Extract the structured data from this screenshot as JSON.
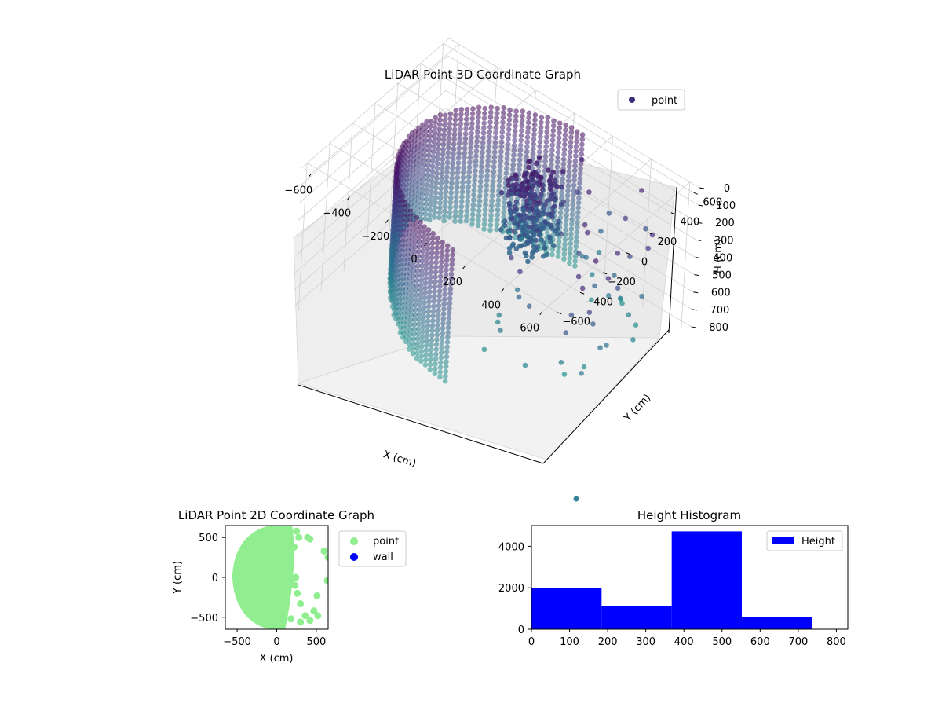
{
  "chart_data": [
    {
      "type": "scatter3d",
      "title": "LiDAR Point 3D Coordinate Graph",
      "xlabel": "X (cm)",
      "ylabel": "Y (cm)",
      "zlabel": "H (cm)",
      "xlim": [
        -650,
        650
      ],
      "ylim": [
        -650,
        650
      ],
      "zlim": [
        0,
        850
      ],
      "z_inverted": true,
      "xticks": [
        "−600",
        "−400",
        "−200",
        "0",
        "200",
        "400",
        "600"
      ],
      "yticks": [
        "−600",
        "−400",
        "−200",
        "0",
        "200",
        "400",
        "600"
      ],
      "zticks": [
        "0",
        "100",
        "200",
        "300",
        "400",
        "500",
        "600",
        "700",
        "800"
      ],
      "legend": {
        "position": "top-right",
        "entries": [
          "point"
        ]
      },
      "colormap": "viridis",
      "series": [
        {
          "name": "point",
          "color": "#3b2f7a",
          "shape": "semicircular wall of points over X from -550 to 250, Y from -550 to 600, H from 0 to 850, with a dense object cluster near X 0, Y 200, H 100 to 500 and scattered outliers toward positive X and Y"
        }
      ]
    },
    {
      "type": "scatter",
      "title": "LiDAR Point 2D Coordinate Graph",
      "xlabel": "X (cm)",
      "ylabel": "Y (cm)",
      "xlim": [
        -650,
        650
      ],
      "ylim": [
        -650,
        650
      ],
      "xticks": [
        "−500",
        "0",
        "500"
      ],
      "yticks": [
        "−500",
        "0",
        "500"
      ],
      "legend": {
        "position": "outside-right",
        "entries": [
          "point",
          "wall"
        ]
      },
      "series": [
        {
          "name": "point",
          "color": "#90ee90",
          "shape": "filled half-disc covering X from -570 to 250, Y from -650 to 650, with scattered points up to X 650"
        },
        {
          "name": "wall",
          "color": "#0000ff"
        }
      ]
    },
    {
      "type": "bar",
      "title": "Height Histogram",
      "xlim": [
        0,
        830
      ],
      "ylim": [
        0,
        5000
      ],
      "xticks": [
        "0",
        "100",
        "200",
        "300",
        "400",
        "500",
        "600",
        "700",
        "800"
      ],
      "yticks": [
        "0",
        "2000",
        "4000"
      ],
      "legend": {
        "position": "top-right",
        "entries": [
          "Height"
        ]
      },
      "bin_edges": [
        0,
        184,
        368,
        552,
        736
      ],
      "values": [
        1980,
        1110,
        4720,
        570
      ],
      "series": [
        {
          "name": "Height",
          "color": "#0000ff"
        }
      ]
    }
  ]
}
